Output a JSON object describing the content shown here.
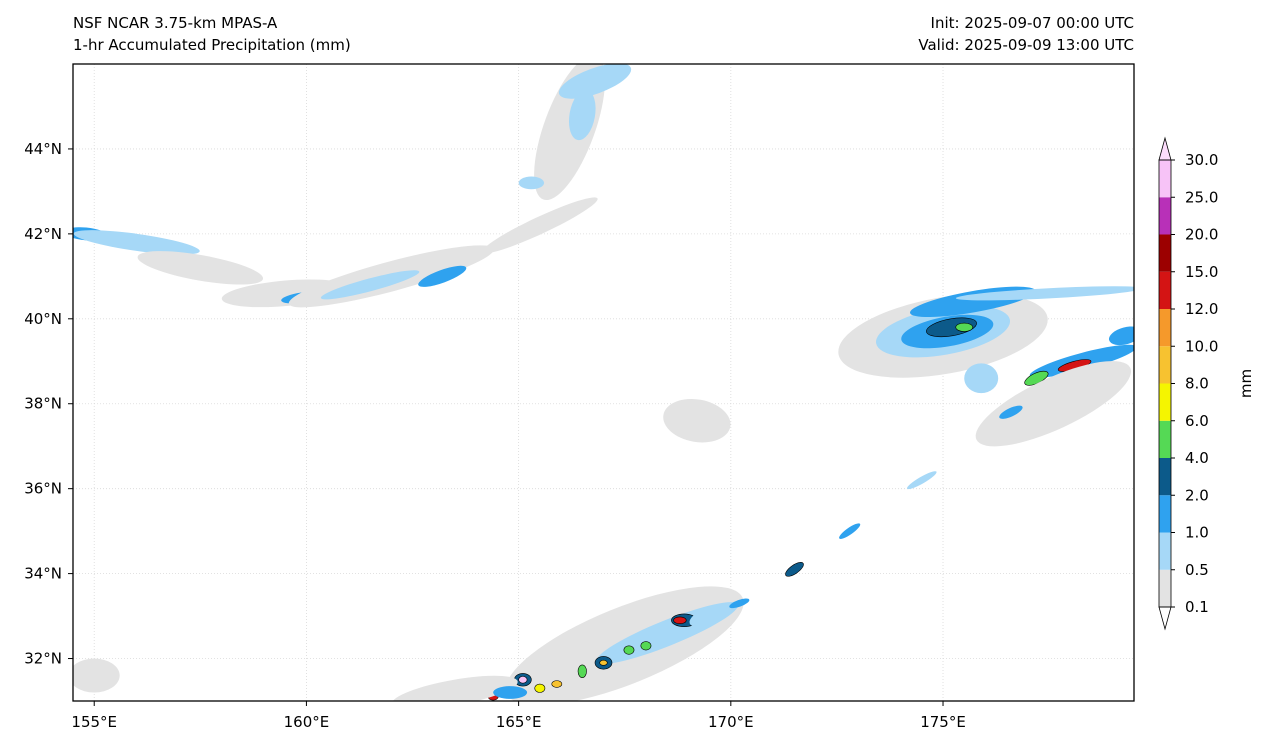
{
  "header": {
    "model": "NSF NCAR 3.75-km MPAS-A",
    "field": "1-hr Accumulated Precipitation (mm)",
    "init": "Init: 2025-09-07 00:00 UTC",
    "valid": "Valid: 2025-09-09 13:00 UTC"
  },
  "map": {
    "lon_range": [
      154.5,
      179.5
    ],
    "lat_range": [
      31,
      46
    ],
    "lon_ticks": [
      {
        "value": 155,
        "label": "155°E"
      },
      {
        "value": 160,
        "label": "160°E"
      },
      {
        "value": 165,
        "label": "165°E"
      },
      {
        "value": 170,
        "label": "170°E"
      },
      {
        "value": 175,
        "label": "175°E"
      }
    ],
    "lat_ticks": [
      {
        "value": 32,
        "label": "32°N"
      },
      {
        "value": 34,
        "label": "34°N"
      },
      {
        "value": 36,
        "label": "36°N"
      },
      {
        "value": 38,
        "label": "38°N"
      },
      {
        "value": 40,
        "label": "40°N"
      },
      {
        "value": 42,
        "label": "42°N"
      },
      {
        "value": 44,
        "label": "44°N"
      }
    ],
    "gridlines": true
  },
  "colorbar": {
    "unit": "mm",
    "levels": [
      "0.1",
      "0.5",
      "1.0",
      "2.0",
      "4.0",
      "6.0",
      "8.0",
      "10.0",
      "12.0",
      "15.0",
      "20.0",
      "25.0",
      "30.0"
    ],
    "colors": [
      "#e3e3e3",
      "#a6d8f7",
      "#2fa2ef",
      "#0c5a8a",
      "#55d955",
      "#f5f500",
      "#f7c230",
      "#f5992b",
      "#d41414",
      "#9c0000",
      "#b830b8",
      "#f7c3f7"
    ],
    "extend": "both"
  },
  "precip_features": [
    {
      "lon": 154.8,
      "lat": 42.0,
      "rx": 0.5,
      "ry": 0.15,
      "rot": 5,
      "level": 2
    },
    {
      "lon": 156.0,
      "lat": 41.8,
      "rx": 1.5,
      "ry": 0.2,
      "rot": 8,
      "level": 1
    },
    {
      "lon": 156.9,
      "lat": 41.4,
      "rx": 0.4,
      "ry": 0.15,
      "rot": 5,
      "level": 3
    },
    {
      "lon": 157.5,
      "lat": 41.2,
      "rx": 1.5,
      "ry": 0.3,
      "rot": 10,
      "level": 0
    },
    {
      "lon": 159.5,
      "lat": 40.6,
      "rx": 1.5,
      "ry": 0.3,
      "rot": -5,
      "level": 0
    },
    {
      "lon": 159.9,
      "lat": 40.5,
      "rx": 0.5,
      "ry": 0.12,
      "rot": -8,
      "level": 2
    },
    {
      "lon": 162.0,
      "lat": 41.0,
      "rx": 2.5,
      "ry": 0.35,
      "rot": -15,
      "level": 0
    },
    {
      "lon": 161.5,
      "lat": 40.8,
      "rx": 1.2,
      "ry": 0.15,
      "rot": -15,
      "level": 1
    },
    {
      "lon": 163.2,
      "lat": 41.0,
      "rx": 0.6,
      "ry": 0.15,
      "rot": -20,
      "level": 2
    },
    {
      "lon": 165.5,
      "lat": 42.2,
      "rx": 1.5,
      "ry": 0.2,
      "rot": -25,
      "level": 0
    },
    {
      "lon": 166.2,
      "lat": 44.5,
      "rx": 0.6,
      "ry": 1.8,
      "rot": 20,
      "level": 0
    },
    {
      "lon": 166.8,
      "lat": 45.6,
      "rx": 0.9,
      "ry": 0.3,
      "rot": -20,
      "level": 1
    },
    {
      "lon": 166.5,
      "lat": 44.8,
      "rx": 0.3,
      "ry": 0.6,
      "rot": 10,
      "level": 1
    },
    {
      "lon": 165.3,
      "lat": 43.2,
      "rx": 0.3,
      "ry": 0.15,
      "rot": 0,
      "level": 1
    },
    {
      "lon": 169.2,
      "lat": 37.6,
      "rx": 0.8,
      "ry": 0.5,
      "rot": 10,
      "level": 0
    },
    {
      "lon": 175.0,
      "lat": 39.6,
      "rx": 2.5,
      "ry": 0.9,
      "rot": -10,
      "level": 0
    },
    {
      "lon": 175.0,
      "lat": 39.7,
      "rx": 1.6,
      "ry": 0.55,
      "rot": -10,
      "level": 1
    },
    {
      "lon": 175.1,
      "lat": 39.7,
      "rx": 1.1,
      "ry": 0.35,
      "rot": -10,
      "level": 2
    },
    {
      "lon": 175.2,
      "lat": 39.8,
      "rx": 0.6,
      "ry": 0.2,
      "rot": -10,
      "level": 3
    },
    {
      "lon": 175.5,
      "lat": 39.8,
      "rx": 0.2,
      "ry": 0.1,
      "rot": 0,
      "level": 4
    },
    {
      "lon": 175.7,
      "lat": 40.4,
      "rx": 1.5,
      "ry": 0.25,
      "rot": -10,
      "level": 2
    },
    {
      "lon": 177.5,
      "lat": 40.6,
      "rx": 2.2,
      "ry": 0.12,
      "rot": -3,
      "level": 1
    },
    {
      "lon": 175.9,
      "lat": 38.6,
      "rx": 0.4,
      "ry": 0.35,
      "rot": 0,
      "level": 1
    },
    {
      "lon": 178.3,
      "lat": 39.0,
      "rx": 1.3,
      "ry": 0.2,
      "rot": -15,
      "level": 2
    },
    {
      "lon": 178.1,
      "lat": 38.9,
      "rx": 0.4,
      "ry": 0.1,
      "rot": -15,
      "level": 8
    },
    {
      "lon": 177.2,
      "lat": 38.6,
      "rx": 0.3,
      "ry": 0.12,
      "rot": -25,
      "level": 4
    },
    {
      "lon": 177.6,
      "lat": 38.0,
      "rx": 2.0,
      "ry": 0.6,
      "rot": -25,
      "level": 0
    },
    {
      "lon": 176.6,
      "lat": 37.8,
      "rx": 0.3,
      "ry": 0.1,
      "rot": -25,
      "level": 2
    },
    {
      "lon": 179.3,
      "lat": 39.6,
      "rx": 0.4,
      "ry": 0.2,
      "rot": -15,
      "level": 2
    },
    {
      "lon": 174.5,
      "lat": 36.2,
      "rx": 0.4,
      "ry": 0.08,
      "rot": -30,
      "level": 1
    },
    {
      "lon": 172.8,
      "lat": 35.0,
      "rx": 0.3,
      "ry": 0.08,
      "rot": -35,
      "level": 2
    },
    {
      "lon": 171.5,
      "lat": 34.1,
      "rx": 0.25,
      "ry": 0.1,
      "rot": -35,
      "level": 3
    },
    {
      "lon": 167.5,
      "lat": 32.3,
      "rx": 3.0,
      "ry": 0.9,
      "rot": -22,
      "level": 0
    },
    {
      "lon": 168.5,
      "lat": 32.6,
      "rx": 1.8,
      "ry": 0.3,
      "rot": -22,
      "level": 1
    },
    {
      "lon": 168.9,
      "lat": 32.9,
      "rx": 0.3,
      "ry": 0.15,
      "rot": 0,
      "level": 3
    },
    {
      "lon": 168.8,
      "lat": 32.9,
      "rx": 0.15,
      "ry": 0.08,
      "rot": 0,
      "level": 8
    },
    {
      "lon": 167.0,
      "lat": 31.9,
      "rx": 0.2,
      "ry": 0.15,
      "rot": 0,
      "level": 3
    },
    {
      "lon": 167.0,
      "lat": 31.9,
      "rx": 0.09,
      "ry": 0.06,
      "rot": 0,
      "level": 6
    },
    {
      "lon": 166.5,
      "lat": 31.7,
      "rx": 0.1,
      "ry": 0.15,
      "rot": 0,
      "level": 4
    },
    {
      "lon": 167.6,
      "lat": 32.2,
      "rx": 0.12,
      "ry": 0.1,
      "rot": 0,
      "level": 4
    },
    {
      "lon": 168.0,
      "lat": 32.3,
      "rx": 0.12,
      "ry": 0.1,
      "rot": 0,
      "level": 4
    },
    {
      "lon": 165.1,
      "lat": 31.5,
      "rx": 0.2,
      "ry": 0.15,
      "rot": 0,
      "level": 3
    },
    {
      "lon": 165.1,
      "lat": 31.5,
      "rx": 0.1,
      "ry": 0.08,
      "rot": 0,
      "level": 11
    },
    {
      "lon": 165.5,
      "lat": 31.3,
      "rx": 0.12,
      "ry": 0.1,
      "rot": 0,
      "level": 5
    },
    {
      "lon": 164.4,
      "lat": 31.1,
      "rx": 0.12,
      "ry": 0.08,
      "rot": 0,
      "level": 8
    },
    {
      "lon": 163.5,
      "lat": 31.2,
      "rx": 1.5,
      "ry": 0.3,
      "rot": -10,
      "level": 0
    },
    {
      "lon": 164.8,
      "lat": 31.2,
      "rx": 0.4,
      "ry": 0.15,
      "rot": 0,
      "level": 2
    },
    {
      "lon": 165.9,
      "lat": 31.4,
      "rx": 0.12,
      "ry": 0.08,
      "rot": 0,
      "level": 6
    },
    {
      "lon": 169.5,
      "lat": 33.0,
      "rx": 0.5,
      "ry": 0.2,
      "rot": -20,
      "level": 1
    },
    {
      "lon": 170.2,
      "lat": 33.3,
      "rx": 0.25,
      "ry": 0.08,
      "rot": -20,
      "level": 2
    },
    {
      "lon": 155.0,
      "lat": 31.6,
      "rx": 0.6,
      "ry": 0.4,
      "rot": 0,
      "level": 0
    }
  ]
}
